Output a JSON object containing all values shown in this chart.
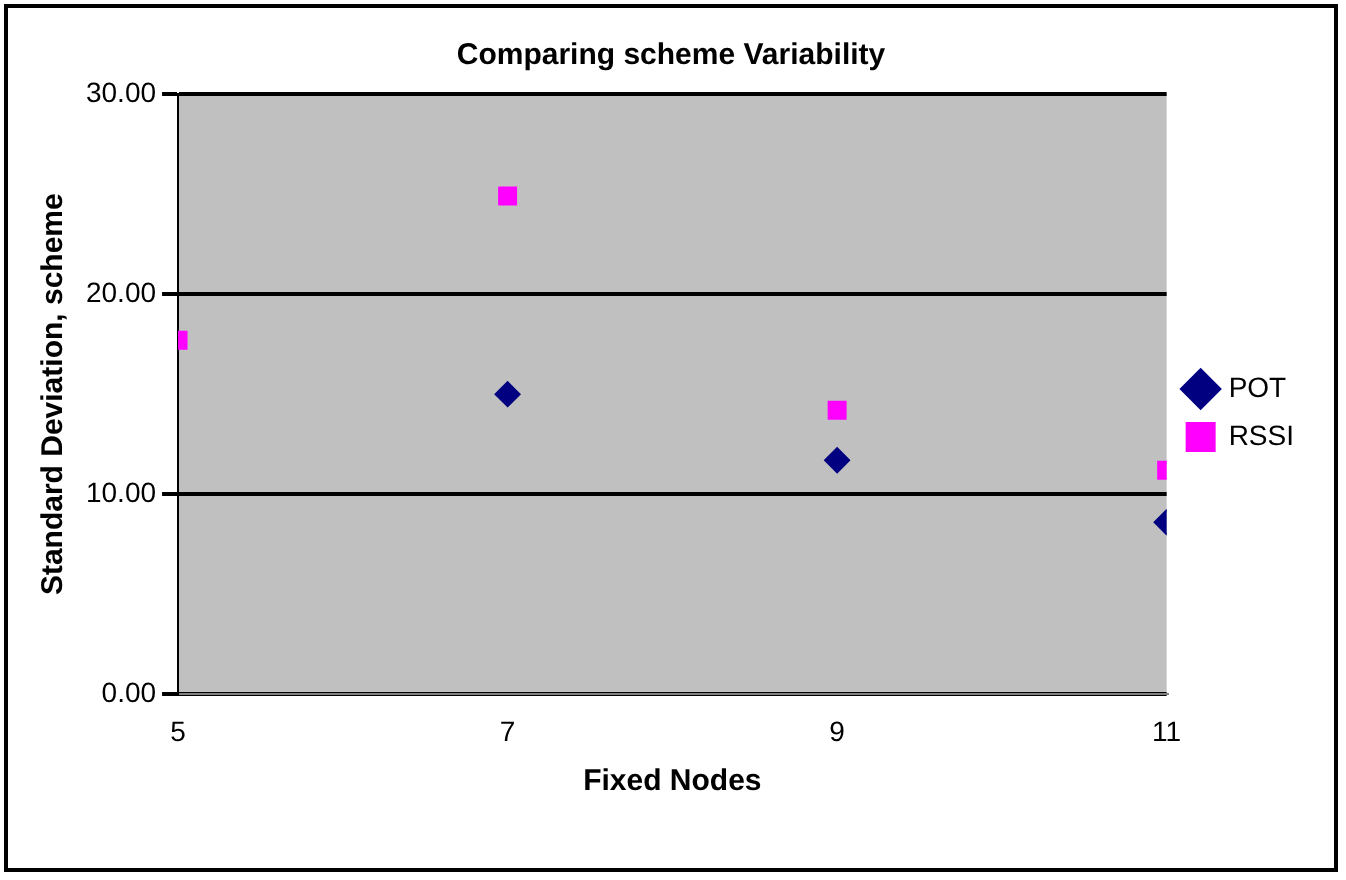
{
  "chart_data": {
    "type": "scatter",
    "title": "Comparing scheme Variability",
    "xlabel": "Fixed Nodes",
    "ylabel": "Standard Deviation, scheme",
    "x": [
      5,
      7,
      9,
      11
    ],
    "series": [
      {
        "name": "POT",
        "color": "#000080",
        "marker": "diamond",
        "values": [
          null,
          15.0,
          11.7,
          8.6
        ]
      },
      {
        "name": "RSSI",
        "color": "#ff00ff",
        "marker": "square",
        "values": [
          17.7,
          24.9,
          14.2,
          11.2
        ]
      }
    ],
    "xlim": [
      5,
      11
    ],
    "xticks": [
      5,
      7,
      9,
      11
    ],
    "ylim": [
      0,
      30
    ],
    "yticks": [
      {
        "value": 0,
        "label": "0.00"
      },
      {
        "value": 10,
        "label": "10.00"
      },
      {
        "value": 20,
        "label": "20.00"
      },
      {
        "value": 30,
        "label": "30.00"
      }
    ],
    "grid": "y",
    "legend": "right"
  }
}
